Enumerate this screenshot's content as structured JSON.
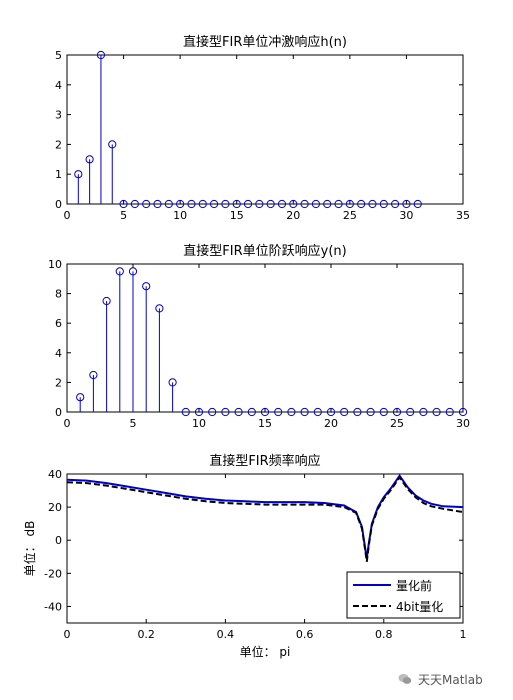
{
  "watermark": {
    "text": "天天Matlab"
  },
  "chart_data": [
    {
      "type": "stem",
      "title": "直接型FIR单位冲激响应h(n)",
      "xlabel": "",
      "ylabel": "",
      "xlim": [
        0,
        35
      ],
      "ylim": [
        0,
        5
      ],
      "xticks": [
        0,
        5,
        10,
        15,
        20,
        25,
        30,
        35
      ],
      "yticks": [
        0,
        1,
        2,
        3,
        4,
        5
      ],
      "x": [
        1,
        2,
        3,
        4,
        5,
        6,
        7,
        8,
        9,
        10,
        11,
        12,
        13,
        14,
        15,
        16,
        17,
        18,
        19,
        20,
        21,
        22,
        23,
        24,
        25,
        26,
        27,
        28,
        29,
        30,
        31
      ],
      "y": [
        1,
        1.5,
        5,
        2,
        0,
        0,
        0,
        0,
        0,
        0,
        0,
        0,
        0,
        0,
        0,
        0,
        0,
        0,
        0,
        0,
        0,
        0,
        0,
        0,
        0,
        0,
        0,
        0,
        0,
        0,
        0
      ],
      "color": "#0000cc"
    },
    {
      "type": "stem",
      "title": "直接型FIR单位阶跃响应y(n)",
      "xlabel": "",
      "ylabel": "",
      "xlim": [
        0,
        30
      ],
      "ylim": [
        0,
        10
      ],
      "xticks": [
        0,
        5,
        10,
        15,
        20,
        25,
        30
      ],
      "yticks": [
        0,
        2,
        4,
        6,
        8,
        10
      ],
      "x": [
        1,
        2,
        3,
        4,
        5,
        6,
        7,
        8,
        9,
        10,
        11,
        12,
        13,
        14,
        15,
        16,
        17,
        18,
        19,
        20,
        21,
        22,
        23,
        24,
        25,
        26,
        27,
        28,
        29,
        30
      ],
      "y": [
        1,
        2.5,
        7.5,
        9.5,
        9.5,
        8.5,
        7,
        2,
        0,
        0,
        0,
        0,
        0,
        0,
        0,
        0,
        0,
        0,
        0,
        0,
        0,
        0,
        0,
        0,
        0,
        0,
        0,
        0,
        0,
        0
      ],
      "color": "#0000cc"
    },
    {
      "type": "line",
      "title": "直接型FIR频率响应",
      "xlabel": "单位： pi",
      "ylabel": "单位： dB",
      "xlim": [
        0,
        1
      ],
      "ylim": [
        -50,
        40
      ],
      "xticks": [
        0,
        0.2,
        0.4,
        0.6,
        0.8,
        1
      ],
      "yticks": [
        -40,
        -20,
        0,
        20,
        40
      ],
      "legend_position": "bottom-right",
      "series": [
        {
          "name": "量化前",
          "color": "#0000cc",
          "style": "solid",
          "points": [
            [
              0,
              36.5
            ],
            [
              0.05,
              36
            ],
            [
              0.1,
              34.5
            ],
            [
              0.15,
              32.5
            ],
            [
              0.2,
              30.5
            ],
            [
              0.25,
              28.5
            ],
            [
              0.3,
              26.5
            ],
            [
              0.35,
              25
            ],
            [
              0.4,
              24
            ],
            [
              0.45,
              23.5
            ],
            [
              0.5,
              23
            ],
            [
              0.55,
              23
            ],
            [
              0.6,
              23
            ],
            [
              0.65,
              22.5
            ],
            [
              0.7,
              21
            ],
            [
              0.73,
              17
            ],
            [
              0.745,
              8
            ],
            [
              0.753,
              -5
            ],
            [
              0.757,
              -11
            ],
            [
              0.762,
              -2
            ],
            [
              0.77,
              10
            ],
            [
              0.785,
              20
            ],
            [
              0.8,
              26
            ],
            [
              0.82,
              32
            ],
            [
              0.84,
              39
            ],
            [
              0.86,
              32
            ],
            [
              0.88,
              27
            ],
            [
              0.9,
              24
            ],
            [
              0.92,
              22
            ],
            [
              0.95,
              20.5
            ],
            [
              1,
              20
            ]
          ]
        },
        {
          "name": "4bit量化",
          "color": "#000000",
          "style": "dashed",
          "points": [
            [
              0,
              35
            ],
            [
              0.05,
              34.5
            ],
            [
              0.1,
              33
            ],
            [
              0.15,
              31
            ],
            [
              0.2,
              29
            ],
            [
              0.25,
              27
            ],
            [
              0.3,
              25
            ],
            [
              0.35,
              23.5
            ],
            [
              0.4,
              22.5
            ],
            [
              0.45,
              22
            ],
            [
              0.5,
              21.5
            ],
            [
              0.55,
              21.5
            ],
            [
              0.6,
              21.5
            ],
            [
              0.65,
              21.5
            ],
            [
              0.7,
              20
            ],
            [
              0.73,
              16.5
            ],
            [
              0.745,
              7
            ],
            [
              0.753,
              -6
            ],
            [
              0.757,
              -13
            ],
            [
              0.762,
              -3
            ],
            [
              0.77,
              9
            ],
            [
              0.785,
              19
            ],
            [
              0.8,
              25
            ],
            [
              0.82,
              31
            ],
            [
              0.84,
              38
            ],
            [
              0.86,
              31
            ],
            [
              0.88,
              26
            ],
            [
              0.9,
              22.5
            ],
            [
              0.92,
              20.5
            ],
            [
              0.95,
              19
            ],
            [
              1,
              17
            ]
          ]
        }
      ]
    }
  ]
}
